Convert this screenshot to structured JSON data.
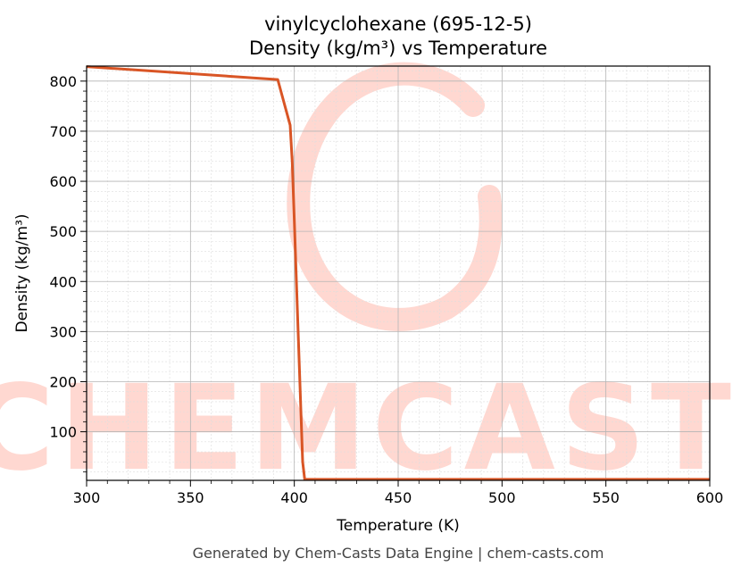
{
  "chart_data": {
    "type": "line",
    "title": "vinylcyclohexane (695-12-5)",
    "subtitle": "Density (kg/m³) vs Temperature",
    "xlabel": "Temperature (K)",
    "ylabel": "Density (kg/m³)",
    "xlim": [
      300,
      600
    ],
    "ylim": [
      3,
      830
    ],
    "xticks": [
      300,
      350,
      400,
      450,
      500,
      550,
      600
    ],
    "yticks": [
      100,
      200,
      300,
      400,
      500,
      600,
      700,
      800
    ],
    "grid": true,
    "series": [
      {
        "color": "#d95525",
        "x": [
          300,
          392,
          398,
          399,
          400,
          401,
          404,
          405,
          600
        ],
        "y": [
          829,
          803,
          712,
          640,
          520,
          400,
          40,
          5,
          5
        ]
      }
    ]
  },
  "watermark": {
    "text": "CHEMCASTS",
    "color": "#ffd8d1"
  },
  "footer": "Generated by Chem-Casts Data Engine | chem-casts.com"
}
